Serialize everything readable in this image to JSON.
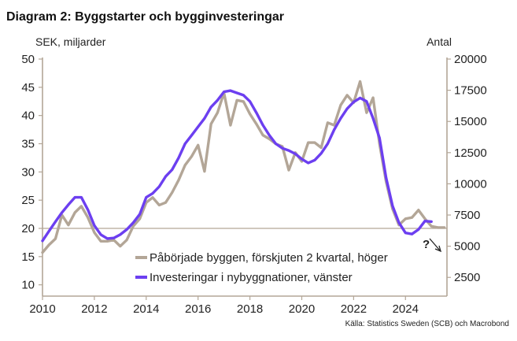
{
  "chart_data": {
    "type": "line",
    "title": "Diagram 2: Byggstarter och bygginvesteringar",
    "left_axis_label": "SEK, miljarder",
    "right_axis_label": "Antal",
    "source": "Källa: Statistics Sweden (SCB) och Macrobond",
    "annotation": "?",
    "xlim": [
      2010,
      2025.6
    ],
    "x_ticks": [
      2010,
      2012,
      2014,
      2016,
      2018,
      2020,
      2022,
      2024
    ],
    "x_tick_labels": [
      "2010",
      "2012",
      "2014",
      "2016",
      "2018",
      "2020",
      "2022",
      "2024"
    ],
    "ylim_left": [
      8,
      50
    ],
    "y_ticks_left": [
      10,
      15,
      20,
      25,
      30,
      35,
      40,
      45,
      50
    ],
    "y_tick_labels_left": [
      "10",
      "15",
      "20",
      "25",
      "30",
      "35",
      "40",
      "45",
      "50"
    ],
    "ylim_right": [
      1000,
      20000
    ],
    "y_ticks_right": [
      2500,
      5000,
      7500,
      10000,
      12500,
      15000,
      17500,
      20000
    ],
    "y_tick_labels_right": [
      "2500",
      "5000",
      "7500",
      "10000",
      "12500",
      "15000",
      "17500",
      "20000"
    ],
    "reference_line_left": 20,
    "grid": false,
    "legend_position": "inside-bottom",
    "colors": {
      "starts": "#b3a697",
      "investment": "#6c3ff0",
      "reference": "#b3a697",
      "axis": "#b3a697",
      "text": "#222222"
    },
    "series": [
      {
        "name": "Påbörjade byggen, förskjuten 2 kvartal, höger",
        "axis": "right",
        "x": [
          2010.0,
          2010.25,
          2010.5,
          2010.75,
          2011.0,
          2011.25,
          2011.5,
          2011.75,
          2012.0,
          2012.25,
          2012.5,
          2012.75,
          2013.0,
          2013.25,
          2013.5,
          2013.75,
          2014.0,
          2014.25,
          2014.5,
          2014.75,
          2015.0,
          2015.25,
          2015.5,
          2015.75,
          2016.0,
          2016.25,
          2016.5,
          2016.75,
          2017.0,
          2017.25,
          2017.5,
          2017.75,
          2018.0,
          2018.25,
          2018.5,
          2018.75,
          2019.0,
          2019.25,
          2019.5,
          2019.75,
          2020.0,
          2020.25,
          2020.5,
          2020.75,
          2021.0,
          2021.25,
          2021.5,
          2021.75,
          2022.0,
          2022.25,
          2022.5,
          2022.75,
          2023.0,
          2023.25,
          2023.5,
          2023.75,
          2024.0,
          2024.25,
          2024.5,
          2024.75,
          2025.0,
          2025.25,
          2025.5
        ],
        "values": [
          4500,
          5100,
          5600,
          7500,
          6700,
          7700,
          8200,
          7300,
          6100,
          5400,
          5400,
          5500,
          5000,
          5500,
          6600,
          7200,
          8500,
          8900,
          8300,
          8500,
          9300,
          10300,
          11500,
          12200,
          13100,
          11000,
          14800,
          15700,
          17300,
          14700,
          16700,
          16600,
          15600,
          14800,
          13900,
          13600,
          13200,
          13000,
          11100,
          12500,
          11800,
          13300,
          13300,
          12900,
          14900,
          14700,
          16300,
          17100,
          16500,
          18200,
          15700,
          16900,
          13200,
          10200,
          8000,
          6700,
          7200,
          7300,
          7900,
          7200,
          6600,
          6500,
          6500
        ]
      },
      {
        "name": "Investeringar i nybyggnationer, vänster",
        "axis": "left",
        "x": [
          2010.0,
          2010.25,
          2010.5,
          2010.75,
          2011.0,
          2011.25,
          2011.5,
          2011.75,
          2012.0,
          2012.25,
          2012.5,
          2012.75,
          2013.0,
          2013.25,
          2013.5,
          2013.75,
          2014.0,
          2014.25,
          2014.5,
          2014.75,
          2015.0,
          2015.25,
          2015.5,
          2015.75,
          2016.0,
          2016.25,
          2016.5,
          2016.75,
          2017.0,
          2017.25,
          2017.5,
          2017.75,
          2018.0,
          2018.25,
          2018.5,
          2018.75,
          2019.0,
          2019.25,
          2019.5,
          2019.75,
          2020.0,
          2020.25,
          2020.5,
          2020.75,
          2021.0,
          2021.25,
          2021.5,
          2021.75,
          2022.0,
          2022.25,
          2022.5,
          2022.75,
          2023.0,
          2023.25,
          2023.5,
          2023.75,
          2024.0,
          2024.25,
          2024.5,
          2024.75,
          2025.0
        ],
        "values": [
          17.8,
          19.5,
          21.2,
          22.8,
          24.2,
          25.5,
          25.5,
          23.3,
          20.5,
          18.9,
          18.2,
          18.3,
          18.9,
          19.8,
          21.0,
          22.5,
          25.5,
          26.2,
          27.4,
          29.2,
          30.4,
          32.5,
          35.0,
          36.5,
          38.0,
          39.5,
          41.5,
          42.7,
          44.2,
          44.4,
          44.0,
          43.6,
          42.5,
          40.5,
          38.3,
          36.5,
          35.0,
          34.2,
          33.8,
          33.2,
          32.3,
          31.6,
          32.1,
          33.3,
          35.0,
          37.5,
          39.5,
          41.2,
          42.4,
          43.1,
          42.5,
          39.5,
          36.0,
          29.0,
          24.0,
          21.0,
          19.2,
          19.0,
          19.8,
          21.3,
          21.2
        ]
      }
    ]
  }
}
